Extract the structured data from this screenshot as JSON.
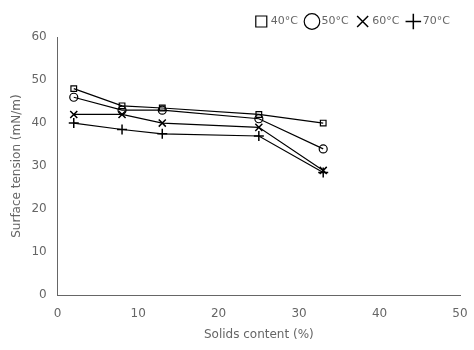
{
  "chart_data": {
    "type": "line",
    "xlabel": "Solids content (%)",
    "ylabel": "Surface tension (mN/m)",
    "series": [
      {
        "name": "40°C",
        "x": [
          2,
          8,
          13,
          25,
          33
        ],
        "values": [
          48,
          44,
          43.5,
          42,
          40
        ],
        "color": "#000000",
        "marker": "square"
      },
      {
        "name": "50°C",
        "x": [
          2,
          8,
          13,
          25,
          33
        ],
        "values": [
          46,
          43,
          43,
          41,
          34
        ],
        "color": "#000000",
        "marker": "circle"
      },
      {
        "name": "60°C",
        "x": [
          2,
          8,
          13,
          25,
          33
        ],
        "values": [
          42,
          42,
          40,
          39,
          29
        ],
        "color": "#000000",
        "marker": "x"
      },
      {
        "name": "70°C",
        "x": [
          2,
          8,
          13,
          25,
          33
        ],
        "values": [
          40,
          38.5,
          37.5,
          37,
          28.5
        ],
        "color": "#000000",
        "marker": "plus"
      }
    ],
    "xlim": [
      0,
      50
    ],
    "ylim": [
      0,
      60
    ],
    "xticks": [
      0,
      10,
      20,
      30,
      40,
      50
    ],
    "yticks": [
      0,
      10,
      20,
      30,
      40,
      50,
      60
    ],
    "grid": false,
    "legend": "upper right"
  }
}
